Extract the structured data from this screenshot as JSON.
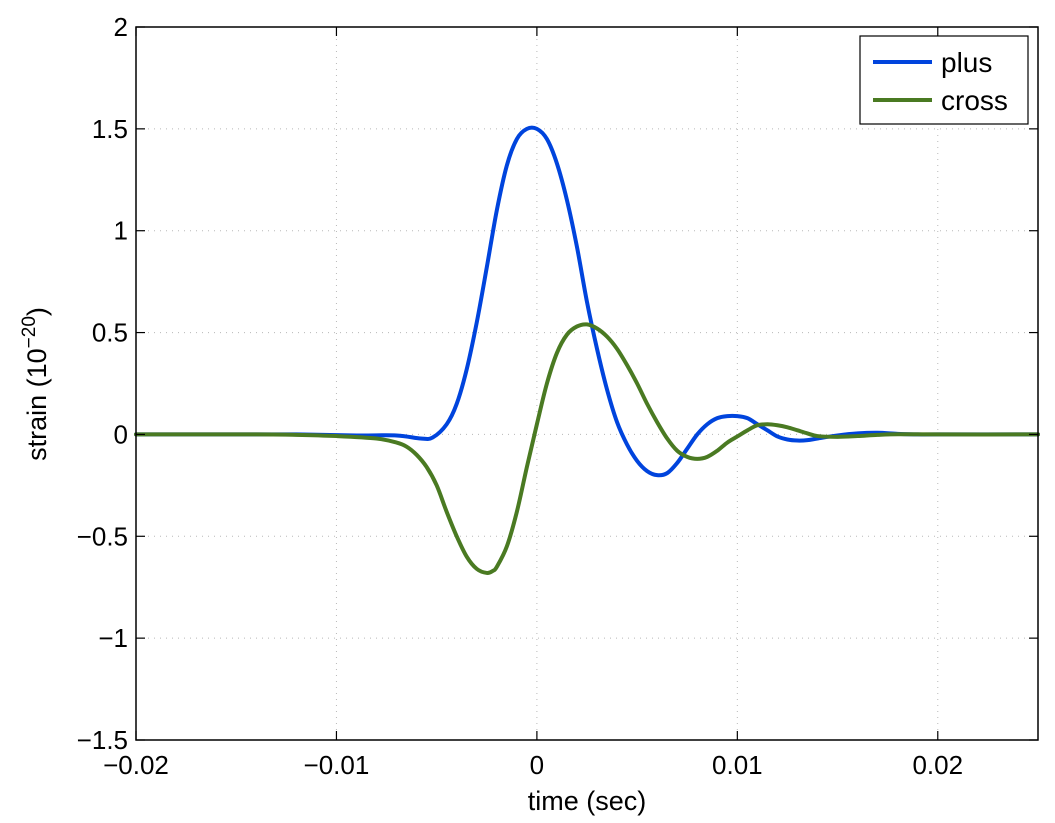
{
  "chart_data": {
    "type": "line",
    "xlabel": "time (sec)",
    "ylabel": {
      "main": "strain (10",
      "exp": "−20",
      "close": ")"
    },
    "xlim": [
      -0.02,
      0.025
    ],
    "ylim": [
      -1.5,
      2
    ],
    "grid": true,
    "legend_position": "top-right",
    "xticks": [
      {
        "value": -0.02,
        "label": "−0.02"
      },
      {
        "value": -0.01,
        "label": "−0.01"
      },
      {
        "value": 0,
        "label": "0"
      },
      {
        "value": 0.01,
        "label": "0.01"
      },
      {
        "value": 0.02,
        "label": "0.02"
      }
    ],
    "yticks": [
      {
        "value": -1.5,
        "label": "−1.5"
      },
      {
        "value": -1,
        "label": "−1"
      },
      {
        "value": -0.5,
        "label": "−0.5"
      },
      {
        "value": 0,
        "label": "0"
      },
      {
        "value": 0.5,
        "label": "0.5"
      },
      {
        "value": 1,
        "label": "1"
      },
      {
        "value": 1.5,
        "label": "1.5"
      },
      {
        "value": 2,
        "label": "2"
      }
    ],
    "series": [
      {
        "name": "plus",
        "color": "#0044dd",
        "points": [
          [
            -0.02,
            0
          ],
          [
            -0.015,
            0
          ],
          [
            -0.012,
            0
          ],
          [
            -0.009,
            -0.005
          ],
          [
            -0.007,
            -0.005
          ],
          [
            -0.0058,
            -0.02
          ],
          [
            -0.0052,
            -0.015
          ],
          [
            -0.0045,
            0.05
          ],
          [
            -0.004,
            0.15
          ],
          [
            -0.0035,
            0.32
          ],
          [
            -0.003,
            0.55
          ],
          [
            -0.0025,
            0.82
          ],
          [
            -0.002,
            1.1
          ],
          [
            -0.0015,
            1.32
          ],
          [
            -0.001,
            1.45
          ],
          [
            -0.0005,
            1.5
          ],
          [
            0,
            1.5
          ],
          [
            0.0005,
            1.45
          ],
          [
            0.001,
            1.33
          ],
          [
            0.0015,
            1.15
          ],
          [
            0.002,
            0.92
          ],
          [
            0.0025,
            0.65
          ],
          [
            0.003,
            0.42
          ],
          [
            0.0035,
            0.22
          ],
          [
            0.004,
            0.06
          ],
          [
            0.0045,
            -0.05
          ],
          [
            0.005,
            -0.13
          ],
          [
            0.0055,
            -0.18
          ],
          [
            0.006,
            -0.2
          ],
          [
            0.0065,
            -0.19
          ],
          [
            0.007,
            -0.14
          ],
          [
            0.0075,
            -0.07
          ],
          [
            0.008,
            0.0
          ],
          [
            0.0085,
            0.05
          ],
          [
            0.009,
            0.08
          ],
          [
            0.0095,
            0.09
          ],
          [
            0.01,
            0.09
          ],
          [
            0.0105,
            0.08
          ],
          [
            0.011,
            0.05
          ],
          [
            0.0115,
            0.02
          ],
          [
            0.012,
            -0.01
          ],
          [
            0.0125,
            -0.025
          ],
          [
            0.013,
            -0.03
          ],
          [
            0.0135,
            -0.028
          ],
          [
            0.014,
            -0.02
          ],
          [
            0.015,
            -0.005
          ],
          [
            0.016,
            0.005
          ],
          [
            0.017,
            0.008
          ],
          [
            0.018,
            0.003
          ],
          [
            0.019,
            0
          ],
          [
            0.02,
            0
          ],
          [
            0.025,
            0
          ]
        ]
      },
      {
        "name": "cross",
        "color": "#4a7a22",
        "points": [
          [
            -0.02,
            0
          ],
          [
            -0.014,
            0
          ],
          [
            -0.012,
            -0.002
          ],
          [
            -0.01,
            -0.008
          ],
          [
            -0.008,
            -0.02
          ],
          [
            -0.007,
            -0.04
          ],
          [
            -0.0065,
            -0.06
          ],
          [
            -0.006,
            -0.1
          ],
          [
            -0.0055,
            -0.16
          ],
          [
            -0.005,
            -0.25
          ],
          [
            -0.0045,
            -0.38
          ],
          [
            -0.004,
            -0.5
          ],
          [
            -0.0035,
            -0.6
          ],
          [
            -0.003,
            -0.66
          ],
          [
            -0.0025,
            -0.68
          ],
          [
            -0.0022,
            -0.67
          ],
          [
            -0.002,
            -0.65
          ],
          [
            -0.0015,
            -0.55
          ],
          [
            -0.001,
            -0.38
          ],
          [
            -0.0005,
            -0.16
          ],
          [
            0,
            0.05
          ],
          [
            0.0005,
            0.25
          ],
          [
            0.001,
            0.4
          ],
          [
            0.0015,
            0.49
          ],
          [
            0.002,
            0.53
          ],
          [
            0.0025,
            0.54
          ],
          [
            0.003,
            0.52
          ],
          [
            0.0035,
            0.48
          ],
          [
            0.004,
            0.42
          ],
          [
            0.0045,
            0.34
          ],
          [
            0.005,
            0.25
          ],
          [
            0.0055,
            0.15
          ],
          [
            0.006,
            0.06
          ],
          [
            0.0065,
            -0.02
          ],
          [
            0.007,
            -0.08
          ],
          [
            0.0075,
            -0.11
          ],
          [
            0.008,
            -0.12
          ],
          [
            0.0085,
            -0.11
          ],
          [
            0.009,
            -0.08
          ],
          [
            0.0095,
            -0.04
          ],
          [
            0.01,
            -0.01
          ],
          [
            0.0105,
            0.02
          ],
          [
            0.011,
            0.045
          ],
          [
            0.0115,
            0.05
          ],
          [
            0.012,
            0.045
          ],
          [
            0.0125,
            0.035
          ],
          [
            0.013,
            0.02
          ],
          [
            0.0135,
            0.005
          ],
          [
            0.014,
            -0.008
          ],
          [
            0.015,
            -0.012
          ],
          [
            0.016,
            -0.008
          ],
          [
            0.017,
            -0.002
          ],
          [
            0.018,
            0.001
          ],
          [
            0.02,
            0
          ],
          [
            0.025,
            0
          ]
        ]
      }
    ]
  }
}
